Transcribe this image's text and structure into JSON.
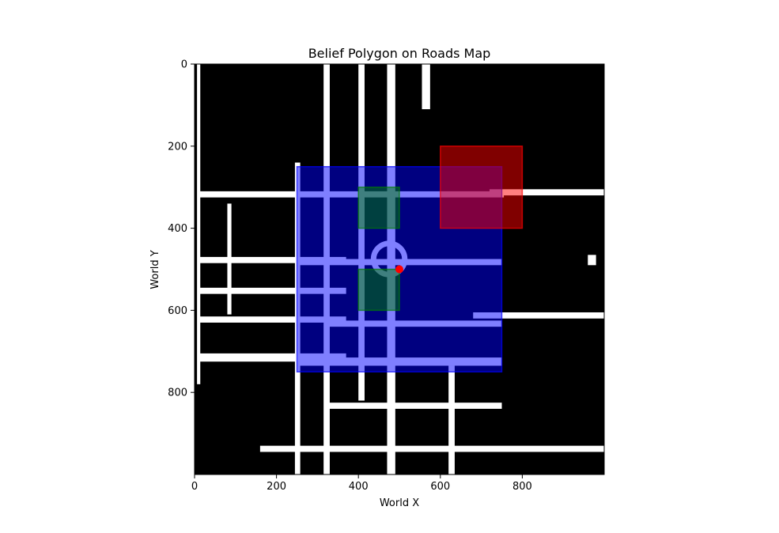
{
  "chart_data": {
    "type": "image-map",
    "title": "Belief Polygon on Roads Map",
    "xlabel": "World X",
    "ylabel": "World Y",
    "xlim": [
      0,
      1000
    ],
    "ylim": [
      1000,
      0
    ],
    "xticks": [
      0,
      200,
      400,
      600,
      800
    ],
    "yticks": [
      0,
      200,
      400,
      600,
      800
    ],
    "background": {
      "description": "roads map",
      "road_color": "#ffffff",
      "ground_color": "#000000",
      "roads": [
        {
          "kind": "rect",
          "x": [
            6,
            14
          ],
          "y": [
            0,
            780
          ]
        },
        {
          "kind": "rect",
          "x": [
            10,
            250
          ],
          "y": [
            310,
            325
          ]
        },
        {
          "kind": "rect",
          "x": [
            10,
            370
          ],
          "y": [
            470,
            485
          ]
        },
        {
          "kind": "rect",
          "x": [
            10,
            370
          ],
          "y": [
            545,
            560
          ]
        },
        {
          "kind": "rect",
          "x": [
            10,
            370
          ],
          "y": [
            615,
            630
          ]
        },
        {
          "kind": "rect",
          "x": [
            10,
            370
          ],
          "y": [
            705,
            725
          ]
        },
        {
          "kind": "rect",
          "x": [
            80,
            90
          ],
          "y": [
            340,
            610
          ]
        },
        {
          "kind": "rect",
          "x": [
            245,
            258
          ],
          "y": [
            240,
            1000
          ]
        },
        {
          "kind": "rect",
          "x": [
            250,
            750
          ],
          "y": [
            715,
            735
          ]
        },
        {
          "kind": "rect",
          "x": [
            250,
            750
          ],
          "y": [
            475,
            490
          ]
        },
        {
          "kind": "rect",
          "x": [
            250,
            755
          ],
          "y": [
            310,
            325
          ]
        },
        {
          "kind": "rect",
          "x": [
            315,
            330
          ],
          "y": [
            0,
            1000
          ]
        },
        {
          "kind": "rect",
          "x": [
            320,
            750
          ],
          "y": [
            625,
            640
          ]
        },
        {
          "kind": "rect",
          "x": [
            320,
            750
          ],
          "y": [
            825,
            840
          ]
        },
        {
          "kind": "rect",
          "x": [
            160,
            1000
          ],
          "y": [
            930,
            945
          ]
        },
        {
          "kind": "rect",
          "x": [
            400,
            415
          ],
          "y": [
            0,
            820
          ]
        },
        {
          "kind": "rect",
          "x": [
            470,
            490
          ],
          "y": [
            0,
            1000
          ]
        },
        {
          "kind": "rect",
          "x": [
            620,
            635
          ],
          "y": [
            735,
            1000
          ]
        },
        {
          "kind": "rect",
          "x": [
            555,
            575
          ],
          "y": [
            0,
            110
          ]
        },
        {
          "kind": "rect",
          "x": [
            720,
            1000
          ],
          "y": [
            305,
            320
          ]
        },
        {
          "kind": "rect",
          "x": [
            680,
            1000
          ],
          "y": [
            605,
            620
          ]
        },
        {
          "kind": "rect",
          "x": [
            960,
            980
          ],
          "y": [
            465,
            490
          ]
        },
        {
          "kind": "circle",
          "cx": 475,
          "cy": 475,
          "r": 38
        }
      ]
    },
    "overlays": [
      {
        "name": "",
        "shape": "rect",
        "x": [
          250,
          750
        ],
        "y": [
          250,
          750
        ],
        "fill": "#0000ff",
        "opacity": 0.5
      },
      {
        "name": "",
        "shape": "rect",
        "x": [
          600,
          800
        ],
        "y": [
          200,
          400
        ],
        "fill": "#ff0000",
        "opacity": 0.5
      },
      {
        "name": "",
        "shape": "rect",
        "x": [
          400,
          500
        ],
        "y": [
          300,
          400
        ],
        "fill": "#008000",
        "opacity": 0.5
      },
      {
        "name": "",
        "shape": "rect",
        "x": [
          400,
          500
        ],
        "y": [
          500,
          600
        ],
        "fill": "#008000",
        "opacity": 0.5
      }
    ],
    "points": [
      {
        "x": 500,
        "y": 500,
        "color": "#ff0000"
      }
    ],
    "grid": false,
    "legend": "none"
  }
}
